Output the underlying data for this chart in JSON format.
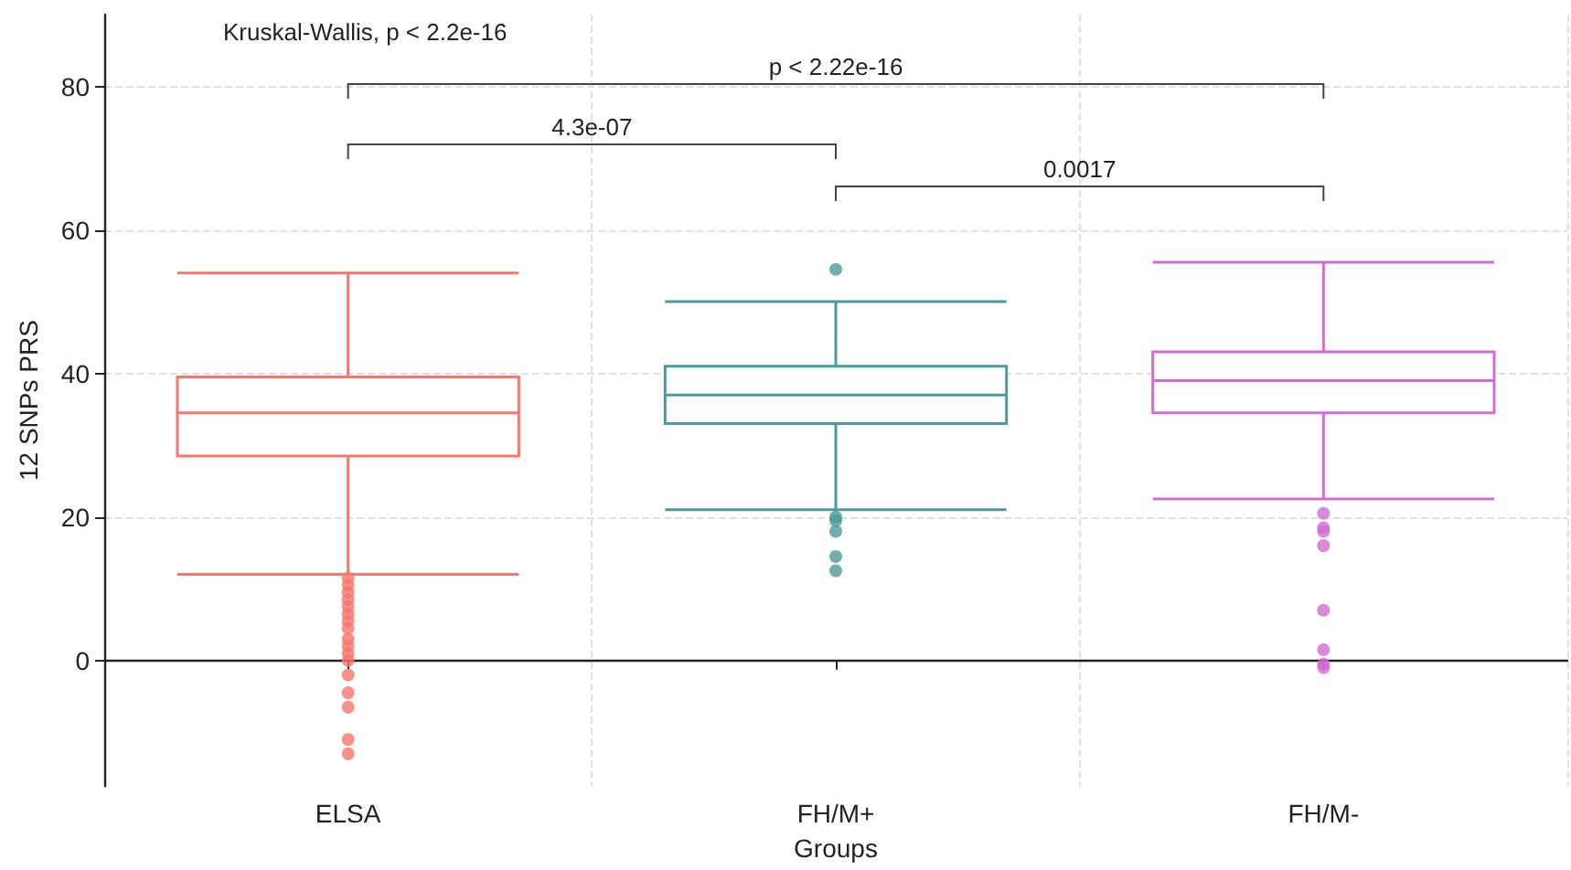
{
  "chart_data": {
    "type": "box",
    "xlabel": "Groups",
    "ylabel": "12 SNPs PRS",
    "categories": [
      "ELSA",
      "FH/M+",
      "FH/M-"
    ],
    "colors": [
      "#f8766d",
      "#4e9a98",
      "#d46bd2"
    ],
    "boxes": [
      {
        "low": 12,
        "q1": 28.5,
        "median": 34.5,
        "q3": 39.5,
        "high": 54,
        "outliers": [
          11.5,
          10.5,
          9.5,
          8.5,
          7.5,
          6.5,
          5.5,
          4.5,
          3,
          2,
          1,
          0,
          -2,
          -4.5,
          -6.5,
          -11,
          -13
        ]
      },
      {
        "low": 21,
        "q1": 33,
        "median": 37,
        "q3": 41,
        "high": 50,
        "outliers": [
          54.5,
          20,
          19.5,
          18,
          14.5,
          12.5
        ]
      },
      {
        "low": 22.5,
        "q1": 34.5,
        "median": 39,
        "q3": 43,
        "high": 55.5,
        "outliers": [
          20.5,
          18.5,
          18,
          16,
          7,
          1.5,
          -0.5,
          -1
        ]
      }
    ],
    "ylim": [
      -17.5,
      90
    ],
    "yticks": [
      0,
      20,
      40,
      60,
      80
    ],
    "grid": true,
    "annotations": [
      "Kruskal-Wallis, p < 2.2e-16",
      "p < 2.22e-16",
      "4.3e-07",
      "0.0017"
    ]
  }
}
